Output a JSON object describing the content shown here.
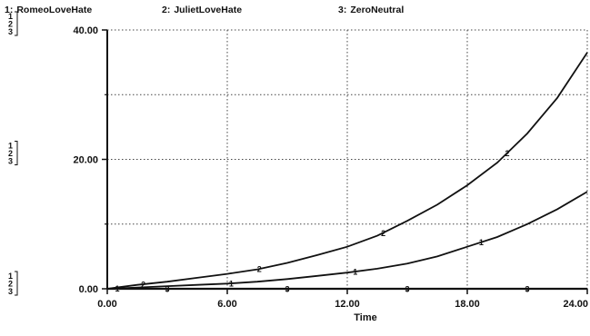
{
  "chart_data": {
    "type": "line",
    "title": "",
    "xlabel": "Time",
    "ylabel": "",
    "xlim": [
      0,
      24
    ],
    "ylim": [
      0,
      40
    ],
    "x_ticks": [
      "0.00",
      "6.00",
      "12.00",
      "18.00",
      "24.00"
    ],
    "y_ticks": [
      "0.00",
      "20.00",
      "40.00"
    ],
    "y_bracket_labels": [
      "1",
      "2",
      "3"
    ],
    "grid": true,
    "legend_position": "top",
    "series": [
      {
        "marker": "1",
        "name": "RomeoLoveHate",
        "x": [
          0,
          1.5,
          3,
          4.5,
          6,
          7.5,
          9,
          10.5,
          12,
          13.5,
          15,
          16.5,
          18,
          19.5,
          21,
          22.5,
          24
        ],
        "values": [
          0.0,
          0.2,
          0.4,
          0.6,
          0.8,
          1.1,
          1.5,
          2.0,
          2.5,
          3.1,
          3.9,
          5.0,
          6.5,
          8.0,
          10.0,
          12.3,
          15.0
        ]
      },
      {
        "marker": "2",
        "name": "JulietLoveHate",
        "x": [
          0,
          1.5,
          3,
          4.5,
          6,
          7.5,
          9,
          10.5,
          12,
          13.5,
          15,
          16.5,
          18,
          19.5,
          21,
          22.5,
          24
        ],
        "values": [
          0.0,
          0.6,
          1.1,
          1.7,
          2.3,
          3.0,
          4.0,
          5.2,
          6.5,
          8.2,
          10.5,
          13.0,
          16.0,
          19.5,
          24.0,
          29.5,
          36.5
        ]
      },
      {
        "marker": "3",
        "name": "ZeroNeutral",
        "x": [
          0,
          24
        ],
        "values": [
          0,
          0
        ]
      }
    ]
  }
}
